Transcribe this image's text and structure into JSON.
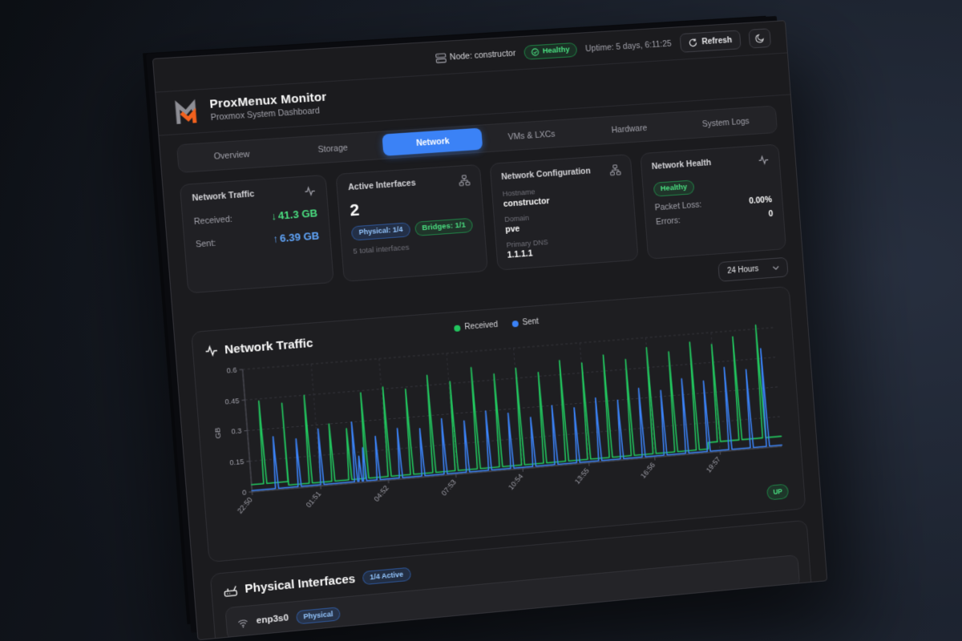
{
  "topbar": {
    "node_label": "Node: constructor",
    "health_badge": "Healthy",
    "uptime": "Uptime: 5 days, 6:11:25",
    "refresh_label": "Refresh"
  },
  "header": {
    "title": "ProxMenux Monitor",
    "subtitle": "Proxmox System Dashboard"
  },
  "tabs": [
    {
      "label": "Overview",
      "active": false
    },
    {
      "label": "Storage",
      "active": false
    },
    {
      "label": "Network",
      "active": true
    },
    {
      "label": "VMs & LXCs",
      "active": false
    },
    {
      "label": "Hardware",
      "active": false
    },
    {
      "label": "System Logs",
      "active": false
    }
  ],
  "cards": {
    "traffic": {
      "title": "Network Traffic",
      "received_label": "Received:",
      "received_value": "41.3 GB",
      "sent_label": "Sent:",
      "sent_value": "6.39 GB"
    },
    "interfaces": {
      "title": "Active Interfaces",
      "count": "2",
      "physical_badge": "Physical: 1/4",
      "bridges_badge": "Bridges: 1/1",
      "total": "5 total interfaces"
    },
    "config": {
      "title": "Network Configuration",
      "hostname_label": "Hostname",
      "hostname": "constructor",
      "domain_label": "Domain",
      "domain": "pve",
      "dns_label": "Primary DNS",
      "dns": "1.1.1.1"
    },
    "health": {
      "title": "Network Health",
      "status": "Healthy",
      "packet_loss_label": "Packet Loss:",
      "packet_loss": "0.00%",
      "errors_label": "Errors:",
      "errors": "0"
    }
  },
  "icons": {
    "arrow_down": "↓",
    "arrow_up": "↑"
  },
  "time_range": {
    "selected": "24 Hours"
  },
  "chart_card": {
    "title": "Network Traffic",
    "up_badge": "UP"
  },
  "chart_data": {
    "type": "line",
    "title": "Network Traffic",
    "ylabel": "GB",
    "ylim": [
      0,
      0.6
    ],
    "yticks": [
      0,
      0.15,
      0.3,
      0.45,
      0.6
    ],
    "xtick_labels": [
      "22:50",
      "01:51",
      "04:52",
      "07:53",
      "10:54",
      "13:55",
      "16:56",
      "19:57"
    ],
    "xtick_hours": [
      0,
      3.02,
      6.03,
      9.05,
      12.07,
      15.08,
      18.1,
      21.12
    ],
    "x_span_hours": 24,
    "grid": "dashed",
    "legend_position": "top-center",
    "series": [
      {
        "name": "Received",
        "color": "#22c55e",
        "baseline_gb": 0.018,
        "plateaus": [
          [
            0,
            1.6,
            0.035
          ],
          [
            20.6,
            24,
            0.05
          ]
        ],
        "spikes": [
          [
            0.6,
            0.44
          ],
          [
            1.6,
            0.42
          ],
          [
            2.6,
            0.45
          ],
          [
            3.6,
            0.3
          ],
          [
            4.35,
            0.27
          ],
          [
            5.1,
            0.44
          ],
          [
            6.1,
            0.46
          ],
          [
            7.1,
            0.44
          ],
          [
            8.1,
            0.5
          ],
          [
            9.1,
            0.46
          ],
          [
            10.1,
            0.52
          ],
          [
            11.1,
            0.48
          ],
          [
            12.1,
            0.5
          ],
          [
            13.1,
            0.47
          ],
          [
            14.1,
            0.52
          ],
          [
            15.1,
            0.5
          ],
          [
            16.1,
            0.53
          ],
          [
            17.1,
            0.5
          ],
          [
            18.1,
            0.55
          ],
          [
            19.1,
            0.52
          ],
          [
            20.1,
            0.56
          ],
          [
            21.1,
            0.54
          ],
          [
            22.1,
            0.57
          ],
          [
            23.2,
            0.62
          ]
        ]
      },
      {
        "name": "Sent",
        "color": "#3b82f6",
        "baseline_gb": 0.006,
        "plateaus": [],
        "spikes": [
          [
            1.1,
            0.26
          ],
          [
            2.1,
            0.24
          ],
          [
            3.1,
            0.28
          ],
          [
            4.6,
            0.3
          ],
          [
            4.8,
            0.13
          ],
          [
            5.0,
            0.17
          ],
          [
            5.6,
            0.22
          ],
          [
            6.6,
            0.25
          ],
          [
            7.6,
            0.24
          ],
          [
            8.6,
            0.28
          ],
          [
            9.6,
            0.26
          ],
          [
            10.6,
            0.3
          ],
          [
            11.6,
            0.28
          ],
          [
            12.6,
            0.25
          ],
          [
            13.6,
            0.3
          ],
          [
            14.6,
            0.28
          ],
          [
            15.6,
            0.32
          ],
          [
            16.6,
            0.3
          ],
          [
            17.6,
            0.35
          ],
          [
            18.6,
            0.33
          ],
          [
            19.6,
            0.38
          ],
          [
            20.6,
            0.36
          ],
          [
            21.6,
            0.42
          ],
          [
            22.6,
            0.4
          ],
          [
            23.35,
            0.5
          ]
        ]
      }
    ]
  },
  "physical": {
    "title": "Physical Interfaces",
    "active_badge": "1/4 Active",
    "interfaces": [
      {
        "name": "enp3s0",
        "type_badge": "Physical"
      }
    ]
  },
  "colors": {
    "accent_blue": "#3b82f6",
    "green": "#22c55e",
    "received_text": "#4ade80",
    "sent_text": "#60a5fa",
    "board_bg": "#1b1b1e"
  }
}
